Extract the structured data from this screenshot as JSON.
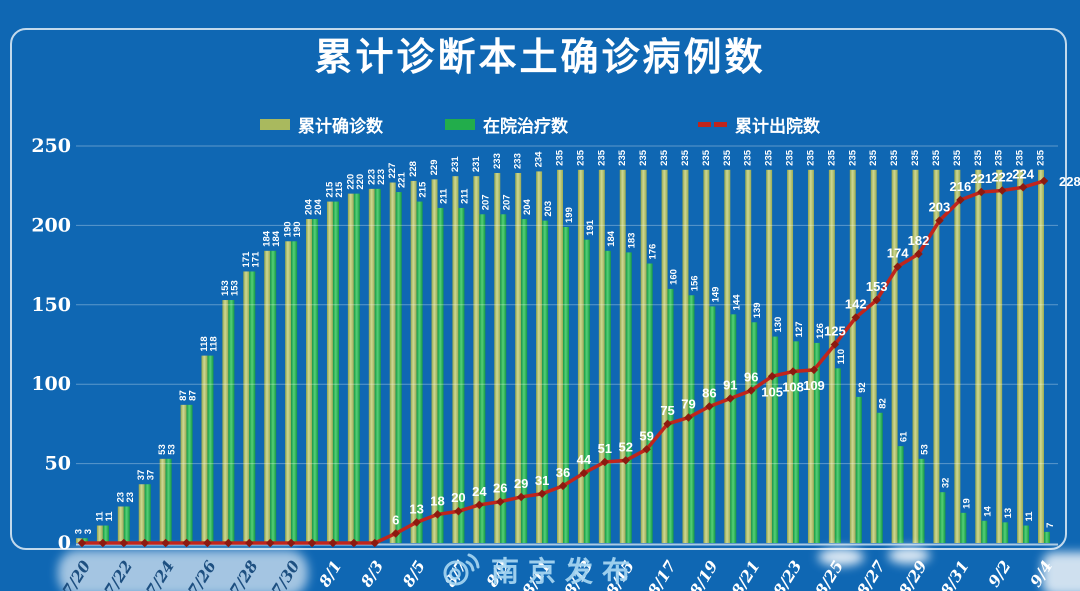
{
  "title": "累计诊断本土确诊病例数",
  "legend": [
    {
      "label": "累计确诊数",
      "color": "#a9b95e"
    },
    {
      "label": "在院治疗数",
      "color": "#22ad4b"
    },
    {
      "label": "累计出院数",
      "color": "#c0251c"
    }
  ],
  "watermark": {
    "text": "南京发布"
  },
  "colors": {
    "background": "#0f67b3",
    "bar_confirmed": "#a9b95e",
    "bar_confirmed_light": "#ced893",
    "bar_inhospital": "#22ad4b",
    "bar_inhospital_light": "#55d077",
    "line_discharged": "#c0251c",
    "marker_discharged": "#8c1a10",
    "gridline": "rgba(255,255,255,0.32)",
    "axis_text": "#ffffff",
    "axis_text_on_blob": "#1d4f80"
  },
  "chart_data": {
    "type": "bar",
    "title": "累计诊断本土确诊病例数",
    "xlabel": "",
    "ylabel": "",
    "ylim": [
      0,
      250
    ],
    "yticks": [
      0,
      50,
      100,
      150,
      200,
      250
    ],
    "grid": "horizontal",
    "legend_position": "top",
    "categories": [
      "7/20",
      "7/21",
      "7/22",
      "7/23",
      "7/24",
      "7/25",
      "7/26",
      "7/27",
      "7/28",
      "7/29",
      "7/30",
      "7/31",
      "8/1",
      "8/2",
      "8/3",
      "8/4",
      "8/5",
      "8/6",
      "8/7",
      "8/8",
      "8/9",
      "8/10",
      "8/11",
      "8/12",
      "8/13",
      "8/14",
      "8/15",
      "8/16",
      "8/17",
      "8/18",
      "8/19",
      "8/20",
      "8/21",
      "8/22",
      "8/23",
      "8/24",
      "8/25",
      "8/26",
      "8/27",
      "8/28",
      "8/29",
      "8/30",
      "8/31",
      "9/1",
      "9/2",
      "9/3",
      "9/4"
    ],
    "x_tick_labels": [
      "7/20",
      "7/22",
      "7/24",
      "7/26",
      "7/28",
      "7/30",
      "8/1",
      "8/3",
      "8/5",
      "8/7",
      "8/9",
      "8/11",
      "8/13",
      "8/15",
      "8/17",
      "8/19",
      "8/21",
      "8/23",
      "8/25",
      "8/27",
      "8/29",
      "8/31",
      "9/2",
      "9/4"
    ],
    "series": [
      {
        "name": "累计确诊数",
        "type": "bar",
        "color": "#a9b95e",
        "values": [
          3,
          11,
          23,
          37,
          53,
          87,
          118,
          153,
          171,
          184,
          190,
          204,
          215,
          220,
          223,
          227,
          228,
          229,
          231,
          231,
          233,
          233,
          234,
          235,
          235,
          235,
          235,
          235,
          235,
          235,
          235,
          235,
          235,
          235,
          235,
          235,
          235,
          235,
          235,
          235,
          235,
          235,
          235,
          235,
          235,
          235,
          235
        ]
      },
      {
        "name": "在院治疗数",
        "type": "bar",
        "color": "#22ad4b",
        "values": [
          3,
          11,
          23,
          37,
          53,
          87,
          118,
          153,
          171,
          184,
          190,
          204,
          215,
          220,
          223,
          221,
          215,
          211,
          211,
          207,
          207,
          204,
          203,
          199,
          191,
          184,
          183,
          176,
          160,
          156,
          149,
          144,
          139,
          130,
          127,
          126,
          110,
          92,
          82,
          61,
          53,
          32,
          19,
          14,
          13,
          11,
          7
        ]
      },
      {
        "name": "累计出院数",
        "type": "line",
        "color": "#c0251c",
        "values": [
          0,
          0,
          0,
          0,
          0,
          0,
          0,
          0,
          0,
          0,
          0,
          0,
          0,
          0,
          0,
          6,
          13,
          18,
          20,
          24,
          26,
          29,
          31,
          36,
          44,
          51,
          52,
          59,
          75,
          79,
          86,
          91,
          96,
          105,
          108,
          109,
          125,
          142,
          153,
          174,
          182,
          203,
          216,
          221,
          222,
          224,
          228
        ]
      }
    ]
  }
}
